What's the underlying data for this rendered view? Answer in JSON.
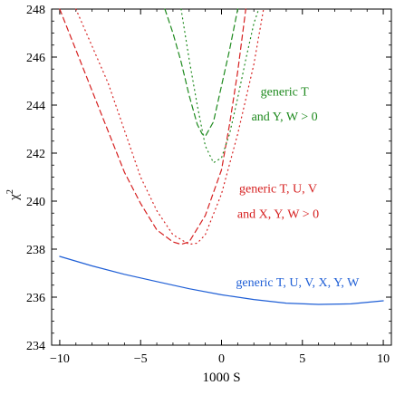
{
  "chart_data": {
    "type": "line",
    "xlabel": "1000 S",
    "ylabel": "χ",
    "ylabel_superscript": "2",
    "xlim": [
      -10.5,
      10.5
    ],
    "ylim": [
      234,
      248
    ],
    "x_ticks": [
      -10,
      -5,
      0,
      5,
      10
    ],
    "x_tick_labels": [
      "−10",
      "−5",
      "0",
      "5",
      "10"
    ],
    "y_ticks": [
      234,
      236,
      238,
      240,
      242,
      244,
      246,
      248
    ],
    "y_tick_labels": [
      "234",
      "236",
      "238",
      "240",
      "242",
      "244",
      "246",
      "248"
    ],
    "grid": false,
    "series": [
      {
        "name": "generic T, U, V, X, Y, W",
        "color": "#1f5fd6",
        "style": "solid",
        "x": [
          -10,
          -8,
          -6,
          -4,
          -2,
          0,
          2,
          4,
          6,
          8,
          10
        ],
        "y": [
          237.7,
          237.3,
          236.95,
          236.65,
          236.35,
          236.1,
          235.9,
          235.75,
          235.7,
          235.72,
          235.85
        ]
      },
      {
        "name": "generic T, U, V and X, Y, W > 0",
        "color": "#d62020",
        "style": "dashed",
        "x": [
          -10,
          -8,
          -6,
          -5,
          -4,
          -3,
          -2.5,
          -2,
          -1,
          0,
          0.5,
          1,
          1.5
        ],
        "y": [
          248,
          244.6,
          241.2,
          239.9,
          238.8,
          238.3,
          238.2,
          238.3,
          239.4,
          241.3,
          243.2,
          245.4,
          248
        ]
      },
      {
        "name": "",
        "color": "#d62020",
        "style": "dotted",
        "x": [
          -9,
          -7,
          -5,
          -4,
          -3,
          -2,
          -1.5,
          -1,
          0,
          1,
          2,
          2.6
        ],
        "y": [
          248,
          244.9,
          241.0,
          239.6,
          238.6,
          238.2,
          238.25,
          238.6,
          240.3,
          242.8,
          245.7,
          248
        ]
      },
      {
        "name": "generic T and Y, W > 0",
        "color": "#1e8a1e",
        "style": "dashed",
        "x": [
          -3.5,
          -3,
          -2.5,
          -2,
          -1.5,
          -1.2,
          -1,
          -0.5,
          0,
          0.5,
          1
        ],
        "y": [
          248,
          247.0,
          245.8,
          244.4,
          243.2,
          242.8,
          242.7,
          243.3,
          244.8,
          246.3,
          248
        ]
      },
      {
        "name": "",
        "color": "#1e8a1e",
        "style": "dotted",
        "x": [
          -2.5,
          -2,
          -1.5,
          -1,
          -0.5,
          0,
          0.5,
          1,
          1.5,
          2,
          2.3
        ],
        "y": [
          248,
          245.9,
          244.0,
          242.3,
          241.6,
          241.8,
          242.8,
          244.3,
          245.9,
          247.4,
          248
        ]
      }
    ],
    "annotations": [
      {
        "text": "generic T",
        "x": 3.9,
        "y": 244.4,
        "color": "#1e8a1e"
      },
      {
        "text": "and Y, W > 0",
        "x": 3.9,
        "y": 243.35,
        "color": "#1e8a1e"
      },
      {
        "text": "generic T, U, V",
        "x": 3.5,
        "y": 240.35,
        "color": "#d62020"
      },
      {
        "text": "and X, Y, W > 0",
        "x": 3.5,
        "y": 239.3,
        "color": "#d62020"
      },
      {
        "text": "generic T, U, V, X, Y, W",
        "x": 4.7,
        "y": 236.45,
        "color": "#1f5fd6"
      }
    ]
  }
}
